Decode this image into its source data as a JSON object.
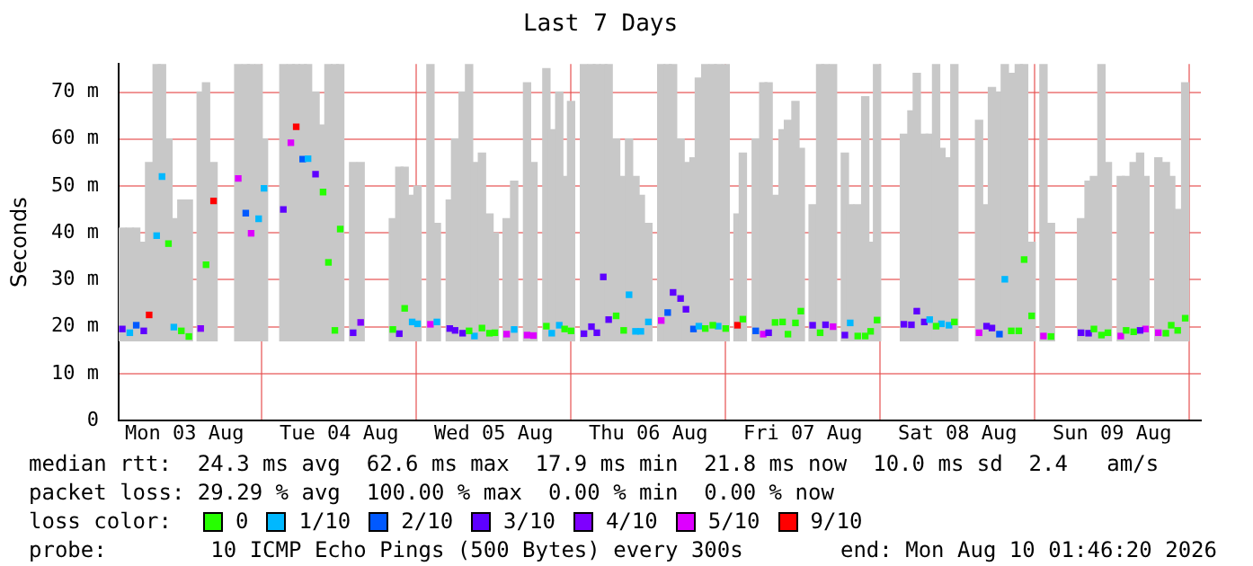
{
  "chart_data": {
    "type": "scatter",
    "title": "Last 7 Days",
    "ylabel": "Seconds",
    "legend_title": "loss color:",
    "legend": "bottom",
    "marker": "square",
    "grid": true,
    "xlim": [
      "2026-08-03T01:46",
      "2026-08-10T01:46"
    ],
    "xticks": [
      {
        "value": "2026-08-03T12:00",
        "label": "Mon 03 Aug"
      },
      {
        "value": "2026-08-04T00:00",
        "label": null
      },
      {
        "value": "2026-08-04T12:00",
        "label": "Tue 04 Aug"
      },
      {
        "value": "2026-08-05T00:00",
        "label": null
      },
      {
        "value": "2026-08-05T12:00",
        "label": "Wed 05 Aug"
      },
      {
        "value": "2026-08-06T00:00",
        "label": null
      },
      {
        "value": "2026-08-06T12:00",
        "label": "Thu 06 Aug"
      },
      {
        "value": "2026-08-07T00:00",
        "label": null
      },
      {
        "value": "2026-08-07T12:00",
        "label": "Fri 07 Aug"
      },
      {
        "value": "2026-08-08T00:00",
        "label": null
      },
      {
        "value": "2026-08-08T12:00",
        "label": "Sat 08 Aug"
      },
      {
        "value": "2026-08-09T00:00",
        "label": null
      },
      {
        "value": "2026-08-09T12:00",
        "label": "Sun 09 Aug"
      },
      {
        "value": "2026-08-10T00:00",
        "label": null
      }
    ],
    "ylim": [
      0,
      76
    ],
    "yticks": [
      0,
      {
        "value": 10,
        "label": "10 m"
      },
      {
        "value": 20,
        "label": "20 m"
      },
      {
        "value": 30,
        "label": "30 m"
      },
      {
        "value": 40,
        "label": "40 m"
      },
      {
        "value": 50,
        "label": "50 m"
      },
      {
        "value": 60,
        "label": "60 m"
      },
      {
        "value": 70,
        "label": "70 m"
      }
    ],
    "annotations": [
      "median rtt:  24.3 ms avg  62.6 ms max  17.9 ms min  21.8 ms now  10.0 ms sd  2.4   am/s",
      "packet loss: 29.29 % avg  100.00 % max  0.00 % min  0.00 % now",
      "probe:        10 ICMP Echo Pings (500 Bytes) every 300s",
      "end: Mon Aug 10 01:46:20 2026"
    ],
    "series": [
      {
        "type": "bar",
        "color": "#c8c8c8",
        "x": [
          "2026-08-03T02:20",
          "2026-08-03T03:30",
          "2026-08-03T04:30",
          "2026-08-03T05:40",
          "2026-08-03T06:30",
          "2026-08-03T07:40",
          "2026-08-03T08:30",
          "2026-08-03T09:30",
          "2026-08-03T10:20",
          "2026-08-03T11:30",
          "2026-08-03T12:40",
          "2026-08-03T14:30",
          "2026-08-03T15:20",
          "2026-08-03T16:30",
          "2026-08-03T20:20",
          "2026-08-03T21:30",
          "2026-08-03T22:20",
          "2026-08-03T23:30",
          "2026-08-04T00:20",
          "2026-08-04T03:20",
          "2026-08-04T04:30",
          "2026-08-04T05:20",
          "2026-08-04T06:20",
          "2026-08-04T07:10",
          "2026-08-04T08:20",
          "2026-08-04T09:30",
          "2026-08-04T10:20",
          "2026-08-04T11:20",
          "2026-08-04T12:10",
          "2026-08-04T14:10",
          "2026-08-04T15:20",
          "2026-08-04T20:20",
          "2026-08-04T21:20",
          "2026-08-04T22:10",
          "2026-08-04T23:20",
          "2026-08-05T00:10",
          "2026-08-05T02:10",
          "2026-08-05T03:10",
          "2026-08-05T05:10",
          "2026-08-05T06:00",
          "2026-08-05T07:10",
          "2026-08-05T08:10",
          "2026-08-05T09:00",
          "2026-08-05T10:10",
          "2026-08-05T11:20",
          "2026-08-05T12:10",
          "2026-08-05T14:00",
          "2026-08-05T15:10",
          "2026-08-05T17:10",
          "2026-08-05T18:10",
          "2026-08-05T20:10",
          "2026-08-05T21:00",
          "2026-08-05T22:10",
          "2026-08-05T23:00",
          "2026-08-06T00:00",
          "2026-08-06T02:00",
          "2026-08-06T03:10",
          "2026-08-06T04:00",
          "2026-08-06T05:00",
          "2026-08-06T05:50",
          "2026-08-06T07:00",
          "2026-08-06T08:10",
          "2026-08-06T09:00",
          "2026-08-06T10:00",
          "2026-08-06T10:50",
          "2026-08-06T12:00",
          "2026-08-06T14:00",
          "2026-08-06T15:00",
          "2026-08-06T15:50",
          "2026-08-06T17:00",
          "2026-08-06T17:50",
          "2026-08-06T19:00",
          "2026-08-06T19:50",
          "2026-08-06T20:50",
          "2026-08-06T22:00",
          "2026-08-06T22:50",
          "2026-08-07T00:00",
          "2026-08-07T01:50",
          "2026-08-07T02:40",
          "2026-08-07T04:40",
          "2026-08-07T05:50",
          "2026-08-07T06:40",
          "2026-08-07T07:40",
          "2026-08-07T08:50",
          "2026-08-07T09:40",
          "2026-08-07T10:50",
          "2026-08-07T11:40",
          "2026-08-07T13:30",
          "2026-08-07T14:40",
          "2026-08-07T15:30",
          "2026-08-07T16:40",
          "2026-08-07T18:30",
          "2026-08-07T19:20",
          "2026-08-07T20:30",
          "2026-08-07T21:40",
          "2026-08-07T22:30",
          "2026-08-07T23:30",
          "2026-08-08T03:40",
          "2026-08-08T04:50",
          "2026-08-08T05:40",
          "2026-08-08T06:50",
          "2026-08-08T07:40",
          "2026-08-08T08:40",
          "2026-08-08T09:30",
          "2026-08-08T10:40",
          "2026-08-08T11:30",
          "2026-08-08T15:20",
          "2026-08-08T16:30",
          "2026-08-08T17:20",
          "2026-08-08T18:30",
          "2026-08-08T19:20",
          "2026-08-08T20:20",
          "2026-08-08T21:30",
          "2026-08-08T22:20",
          "2026-08-08T23:30",
          "2026-08-09T01:20",
          "2026-08-09T02:30",
          "2026-08-09T07:10",
          "2026-08-09T08:20",
          "2026-08-09T09:10",
          "2026-08-09T10:20",
          "2026-08-09T11:20",
          "2026-08-09T13:20",
          "2026-08-09T14:10",
          "2026-08-09T15:20",
          "2026-08-09T16:20",
          "2026-08-09T17:10",
          "2026-08-09T19:10",
          "2026-08-09T20:20",
          "2026-08-09T21:10",
          "2026-08-09T22:10",
          "2026-08-09T23:20"
        ],
        "base": [
          17,
          17,
          17,
          17,
          17,
          17,
          17,
          17,
          17,
          17,
          17,
          17,
          17,
          17,
          17,
          17,
          17,
          17,
          17,
          17,
          17,
          17,
          17,
          17,
          17,
          17,
          17,
          17,
          17,
          17,
          17,
          17,
          17,
          17,
          17,
          17,
          17,
          17,
          17,
          17,
          17,
          17,
          17,
          17,
          17,
          17,
          17,
          17,
          17,
          17,
          17,
          17,
          17,
          17,
          17,
          17,
          17,
          17,
          17,
          17,
          17,
          17,
          17,
          17,
          17,
          17,
          17,
          17,
          17,
          17,
          17,
          17,
          17,
          17,
          17,
          17,
          17,
          17,
          17,
          17,
          17,
          17,
          17,
          17,
          17,
          17,
          17,
          17,
          17,
          17,
          17,
          17,
          17,
          17,
          17,
          17,
          17,
          17,
          17,
          17,
          17,
          17,
          17,
          17,
          17,
          17,
          17,
          17,
          17,
          17,
          17,
          17,
          17,
          17,
          17,
          17,
          17,
          17,
          17,
          17,
          17,
          17,
          17,
          17,
          17,
          17,
          17,
          17,
          17,
          17,
          17,
          17
        ],
        "values": [
          24,
          24,
          24,
          21,
          38,
          59,
          59,
          43,
          26,
          30,
          30,
          53,
          55,
          38,
          59,
          59,
          59,
          59,
          43,
          59,
          59,
          59,
          59,
          59,
          53,
          46,
          59,
          59,
          59,
          38,
          38,
          26,
          37,
          37,
          31,
          33,
          59,
          25,
          30,
          43,
          53,
          59,
          38,
          40,
          27,
          23,
          26,
          34,
          55,
          38,
          58,
          45,
          53,
          35,
          51,
          59,
          59,
          59,
          59,
          59,
          43,
          35,
          43,
          35,
          31,
          25,
          59,
          59,
          59,
          43,
          38,
          39,
          56,
          59,
          59,
          59,
          59,
          27,
          40,
          43,
          55,
          55,
          31,
          45,
          47,
          51,
          41,
          29,
          59,
          59,
          59,
          40,
          29,
          29,
          52,
          21,
          59,
          44,
          49,
          57,
          44,
          44,
          59,
          41,
          39,
          59,
          47,
          29,
          54,
          53,
          59,
          57,
          59,
          59,
          21,
          59,
          25,
          26,
          34,
          35,
          59,
          38,
          35,
          35,
          38,
          40,
          35,
          39,
          38,
          35,
          28,
          55
        ]
      },
      {
        "name": "0",
        "color": "#26ff00",
        "x": [
          "2026-08-03T09:30",
          "2026-08-03T11:30",
          "2026-08-03T12:40",
          "2026-08-03T15:20",
          "2026-08-04T09:30",
          "2026-08-04T10:20",
          "2026-08-04T11:20",
          "2026-08-04T12:10",
          "2026-08-04T20:20",
          "2026-08-04T22:10",
          "2026-08-05T08:10",
          "2026-08-05T10:10",
          "2026-08-05T11:20",
          "2026-08-05T12:10",
          "2026-08-05T20:10",
          "2026-08-05T23:00",
          "2026-08-06T00:00",
          "2026-08-06T07:00",
          "2026-08-06T08:10",
          "2026-08-06T20:50",
          "2026-08-06T22:00",
          "2026-08-07T00:00",
          "2026-08-07T02:40",
          "2026-08-07T07:40",
          "2026-08-07T08:50",
          "2026-08-07T09:40",
          "2026-08-07T10:50",
          "2026-08-07T11:40",
          "2026-08-07T14:40",
          "2026-08-07T20:30",
          "2026-08-07T21:40",
          "2026-08-07T22:30",
          "2026-08-07T23:30",
          "2026-08-08T08:40",
          "2026-08-08T11:30",
          "2026-08-08T20:20",
          "2026-08-08T21:30",
          "2026-08-08T22:20",
          "2026-08-08T23:30",
          "2026-08-09T02:30",
          "2026-08-09T09:10",
          "2026-08-09T10:20",
          "2026-08-09T11:20",
          "2026-08-09T14:10",
          "2026-08-09T15:20",
          "2026-08-09T20:20",
          "2026-08-09T21:10",
          "2026-08-09T22:10",
          "2026-08-09T23:20"
        ],
        "values": [
          37.7,
          19.1,
          17.9,
          33.2,
          48.7,
          33.7,
          19.2,
          40.8,
          19.4,
          23.9,
          19.1,
          19.7,
          18.6,
          18.7,
          20.1,
          19.5,
          19.1,
          22.3,
          19.2,
          19.6,
          20.3,
          19.6,
          21.6,
          20.9,
          21,
          18.4,
          20.8,
          23.3,
          18.7,
          18,
          18,
          19,
          21.4,
          20.1,
          21,
          19.1,
          19.1,
          34.3,
          22.3,
          17.9,
          19.5,
          18.2,
          18.7,
          19.2,
          18.9,
          18.6,
          20.3,
          19.2,
          21.8
        ]
      },
      {
        "name": "1/10",
        "color": "#00b8ff",
        "x": [
          "2026-08-03T03:30",
          "2026-08-03T07:40",
          "2026-08-03T08:30",
          "2026-08-03T10:20",
          "2026-08-03T23:30",
          "2026-08-04T00:20",
          "2026-08-04T07:10",
          "2026-08-04T23:20",
          "2026-08-05T00:10",
          "2026-08-05T03:10",
          "2026-08-05T09:00",
          "2026-08-05T15:10",
          "2026-08-05T21:00",
          "2026-08-05T22:10",
          "2026-08-06T09:00",
          "2026-08-06T10:00",
          "2026-08-06T10:50",
          "2026-08-06T12:00",
          "2026-08-06T19:50",
          "2026-08-06T22:50",
          "2026-08-07T19:20",
          "2026-08-08T07:40",
          "2026-08-08T09:30",
          "2026-08-08T10:40",
          "2026-08-08T19:20"
        ],
        "values": [
          18.7,
          39.4,
          52,
          19.9,
          43,
          49.5,
          55.8,
          21,
          20.6,
          21,
          18,
          19.4,
          18.6,
          20.3,
          26.8,
          19,
          19,
          21,
          20.1,
          20.1,
          20.8,
          21.5,
          20.6,
          20.3,
          30.1
        ]
      },
      {
        "name": "2/10",
        "color": "#0059ff",
        "x": [
          "2026-08-03T04:30",
          "2026-08-03T21:30",
          "2026-08-04T06:20",
          "2026-08-06T15:00",
          "2026-08-06T19:00",
          "2026-08-07T04:40",
          "2026-08-08T18:30"
        ],
        "values": [
          20.3,
          44.2,
          55.7,
          23,
          19.5,
          19.1,
          18.4
        ]
      },
      {
        "name": "3/10",
        "color": "#5e00ff",
        "x": [
          "2026-08-03T02:20",
          "2026-08-03T05:40",
          "2026-08-04T03:20",
          "2026-08-04T08:20",
          "2026-08-04T14:10",
          "2026-08-04T21:20",
          "2026-08-05T05:10",
          "2026-08-05T06:00",
          "2026-08-05T07:10",
          "2026-08-06T02:00",
          "2026-08-06T03:10",
          "2026-08-06T04:00",
          "2026-08-06T05:00",
          "2026-08-06T05:50",
          "2026-08-06T15:50",
          "2026-08-06T17:00",
          "2026-08-06T17:50",
          "2026-08-07T06:40",
          "2026-08-07T13:30",
          "2026-08-07T15:30",
          "2026-08-07T18:30",
          "2026-08-08T03:40",
          "2026-08-08T04:50",
          "2026-08-08T05:40",
          "2026-08-08T06:50",
          "2026-08-08T16:30",
          "2026-08-08T17:20",
          "2026-08-09T07:10",
          "2026-08-09T08:20",
          "2026-08-09T16:20"
        ],
        "values": [
          19.5,
          19.1,
          45,
          52.5,
          18.7,
          18.5,
          19.6,
          19.2,
          18.6,
          18.5,
          20,
          18.7,
          30.6,
          21.5,
          27.3,
          26,
          23.7,
          18.7,
          20.3,
          20.4,
          18.2,
          20.5,
          20.4,
          23.3,
          21,
          20.1,
          19.7,
          18.7,
          18.6,
          19.2
        ]
      },
      {
        "name": "4/10",
        "color": "#7e00ff",
        "x": [
          "2026-08-03T14:30",
          "2026-08-04T15:20"
        ],
        "values": [
          19.6,
          20.9
        ]
      },
      {
        "name": "5/10",
        "color": "#dd00ff",
        "x": [
          "2026-08-03T20:20",
          "2026-08-03T22:20",
          "2026-08-04T04:30",
          "2026-08-05T02:10",
          "2026-08-05T14:00",
          "2026-08-05T17:10",
          "2026-08-05T18:10",
          "2026-08-06T14:00",
          "2026-08-07T05:50",
          "2026-08-07T16:40",
          "2026-08-08T15:20",
          "2026-08-09T01:20",
          "2026-08-09T13:20",
          "2026-08-09T17:10",
          "2026-08-09T19:10"
        ],
        "values": [
          51.6,
          39.9,
          59.2,
          20.5,
          18.4,
          18.2,
          18.1,
          21.3,
          18.4,
          20,
          18.7,
          18,
          18,
          19.5,
          18.7
        ]
      },
      {
        "name": "9/10",
        "color": "#ff0000",
        "x": [
          "2026-08-03T06:30",
          "2026-08-03T16:30",
          "2026-08-04T05:20",
          "2026-08-07T01:50"
        ],
        "values": [
          22.5,
          46.8,
          62.6,
          20.3
        ]
      }
    ]
  }
}
